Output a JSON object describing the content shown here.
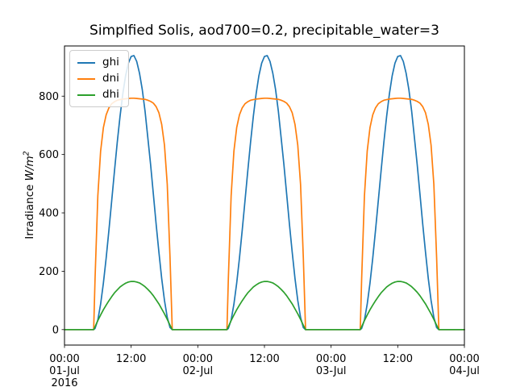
{
  "chart_data": {
    "type": "line",
    "title": "Simplfied Solis, aod700=0.2, precipitable_water=3",
    "xlabel": "",
    "ylabel": "Irradiance W/m^2",
    "ylabel_parts": {
      "prefix": "Irradiance ",
      "unit": "W/m",
      "exponent": "2"
    },
    "grid": false,
    "xlim_hours": [
      0,
      72
    ],
    "ylim": [
      -53,
      972
    ],
    "y_ticks": [
      0,
      200,
      400,
      600,
      800
    ],
    "x_ticks": [
      {
        "hour": 0,
        "lines": [
          "00:00",
          "01-Jul",
          "2016"
        ]
      },
      {
        "hour": 12,
        "lines": [
          "12:00"
        ]
      },
      {
        "hour": 24,
        "lines": [
          "00:00",
          "02-Jul"
        ]
      },
      {
        "hour": 36,
        "lines": [
          "12:00"
        ]
      },
      {
        "hour": 48,
        "lines": [
          "00:00",
          "03-Jul"
        ]
      },
      {
        "hour": 60,
        "lines": [
          "12:00"
        ]
      },
      {
        "hour": 72,
        "lines": [
          "00:00",
          "04-Jul"
        ]
      }
    ],
    "x_start_label": "00:00 01-Jul 2016",
    "x_end_label": "00:00 04-Jul",
    "days": [
      "01-Jul",
      "02-Jul",
      "03-Jul"
    ],
    "legend": {
      "position": "upper left",
      "entries": [
        {
          "label": "ghi",
          "color": "#1f77b4"
        },
        {
          "label": "dni",
          "color": "#ff7f0e"
        },
        {
          "label": "dhi",
          "color": "#2ca02c"
        }
      ]
    },
    "note": "Three identical diurnal cycles (01-Jul to 03-Jul 2016); sunrise ~05:20, solar noon ~12:18, sunset ~19:20. day_profile sampled values repeat each day.",
    "day_profile": {
      "hours": [
        0,
        5.25,
        5.5,
        6,
        6.5,
        7,
        7.5,
        8,
        8.5,
        9,
        9.5,
        10,
        10.5,
        11,
        11.5,
        12,
        12.5,
        13,
        13.5,
        14,
        14.5,
        15,
        15.5,
        16,
        16.5,
        17,
        17.5,
        18,
        18.5,
        19,
        19.4,
        24
      ],
      "series": [
        {
          "name": "ghi",
          "color": "#1f77b4",
          "peak": 940,
          "values": [
            0,
            0,
            4,
            33,
            87,
            159,
            245,
            341,
            442,
            544,
            642,
            731,
            808,
            870,
            913,
            936,
            939,
            919,
            879,
            823,
            749,
            658,
            566,
            464,
            361,
            265,
            175,
            100,
            42,
            7,
            0,
            0
          ]
        },
        {
          "name": "dni",
          "color": "#ff7f0e",
          "peak": 795,
          "values": [
            0,
            0,
            174,
            458,
            611,
            692,
            736,
            760,
            774,
            781,
            786,
            788,
            790,
            791,
            792,
            793,
            793,
            792,
            791,
            790,
            789,
            786,
            782,
            776,
            764,
            743,
            703,
            632,
            498,
            246,
            0,
            0
          ]
        },
        {
          "name": "dhi",
          "color": "#2ca02c",
          "peak": 165,
          "values": [
            0,
            0,
            10,
            31,
            50,
            68,
            84,
            99,
            113,
            126,
            136,
            146,
            153,
            159,
            163,
            165,
            165,
            163,
            160,
            154,
            147,
            138,
            128,
            116,
            102,
            88,
            71,
            54,
            35,
            15,
            0,
            0
          ]
        }
      ]
    }
  }
}
